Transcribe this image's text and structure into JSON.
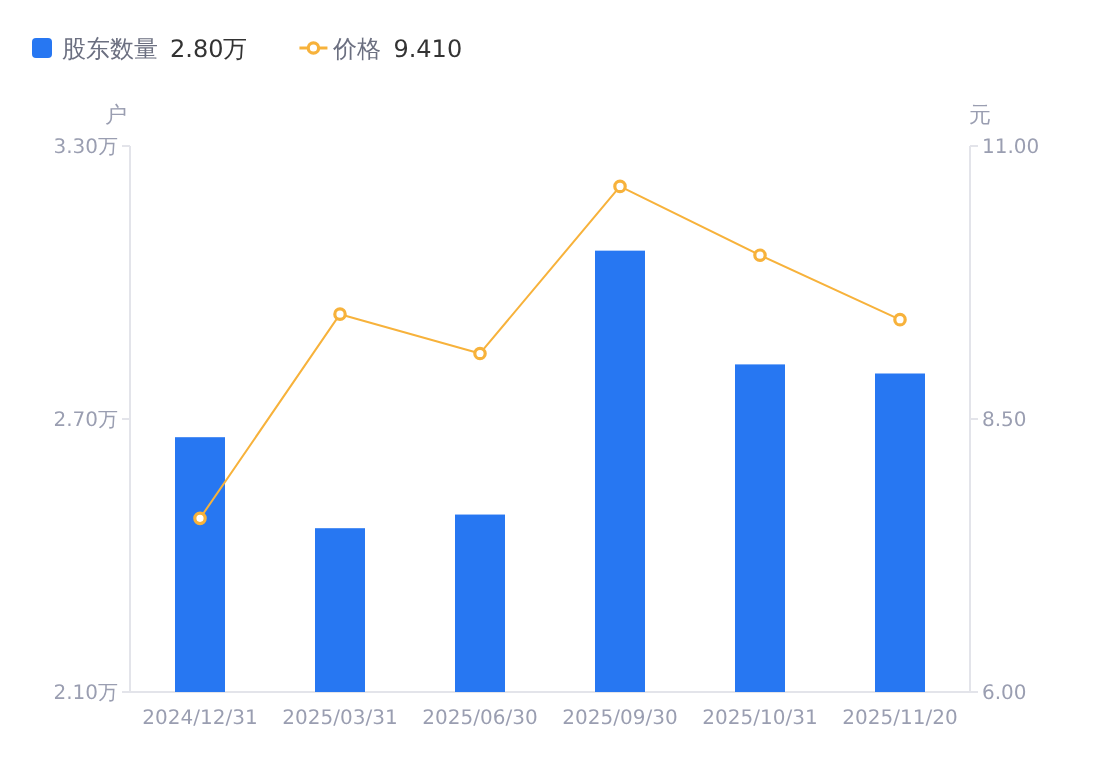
{
  "chart_data": {
    "type": "bar",
    "legend": "top left",
    "ylabel": "户",
    "y2label": "元",
    "categories": [
      "2024/12/31",
      "2025/03/31",
      "2025/06/30",
      "2025/09/30",
      "2025/10/31",
      "2025/11/20"
    ],
    "series": [
      {
        "name": "股东数量",
        "color": "#2777f2",
        "values": [
          2.66,
          2.46,
          2.49,
          3.07,
          2.82,
          2.8
        ]
      },
      {
        "name": "价格",
        "type": "line",
        "axis": "y2",
        "marker": "circle",
        "color": "#f7b23b",
        "values": [
          7.59,
          9.46,
          9.1,
          10.63,
          10.0,
          9.41
        ]
      }
    ],
    "ylim": [
      2.1,
      3.3
    ],
    "yticks": [
      {
        "value": 2.1,
        "label": "2.10万"
      },
      {
        "value": 2.7,
        "label": "2.70万"
      },
      {
        "value": 3.3,
        "label": "3.30万"
      }
    ],
    "y2lim": [
      6,
      11
    ],
    "y2ticks": [
      {
        "value": 6,
        "label": "6.00"
      },
      {
        "value": 8.5,
        "label": "8.50"
      },
      {
        "value": 11,
        "label": "11.00"
      }
    ],
    "annotations": [
      "2.80万",
      "9.410"
    ]
  }
}
